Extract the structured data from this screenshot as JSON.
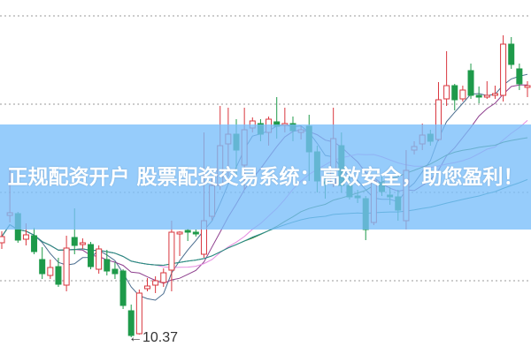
{
  "chart_data": {
    "type": "candlestick",
    "title": "",
    "ylim": [
      10.18,
      14.19
    ],
    "grid": {
      "horizontal": true,
      "style": "dotted",
      "values": [
        14.01,
        13.01,
        12.01,
        11.01
      ]
    },
    "up_color": "#d9363e",
    "down_color": "#1e9a4a",
    "moving_averages": [
      {
        "period": 5,
        "color": "#4a6d8f"
      },
      {
        "period": 10,
        "color": "#8e3f8e"
      },
      {
        "period": 20,
        "color": "#e58be0"
      },
      {
        "period": 30,
        "color": "#2e7d32"
      },
      {
        "period": 60,
        "color": "#2a8c8c"
      }
    ],
    "annotations": [
      {
        "label": "10.37",
        "value": 10.37,
        "candle": 17
      }
    ],
    "candles": [
      [
        11.44,
        11.51,
        11.57,
        11.37
      ],
      [
        11.75,
        11.78,
        12.29,
        11.67
      ],
      [
        11.77,
        11.47,
        11.79,
        11.44
      ],
      [
        11.48,
        11.53,
        11.66,
        11.41
      ],
      [
        11.52,
        11.34,
        11.61,
        11.31
      ],
      [
        11.25,
        11.09,
        11.39,
        11.03
      ],
      [
        11.07,
        11.16,
        11.25,
        11.03
      ],
      [
        11.17,
        10.97,
        11.27,
        10.94
      ],
      [
        10.96,
        11.38,
        11.52,
        10.89
      ],
      [
        11.5,
        11.41,
        11.83,
        11.31
      ],
      [
        11.42,
        11.44,
        11.49,
        11.37
      ],
      [
        11.42,
        11.17,
        11.45,
        11.14
      ],
      [
        11.14,
        11.37,
        11.41,
        11.09
      ],
      [
        11.25,
        11.12,
        11.36,
        11.07
      ],
      [
        11.14,
        11.09,
        11.22,
        11.03
      ],
      [
        11.12,
        10.73,
        11.14,
        10.69
      ],
      [
        10.67,
        10.39,
        10.74,
        10.37
      ],
      [
        10.41,
        10.87,
        10.91,
        10.4
      ],
      [
        10.92,
        10.95,
        11.04,
        10.89
      ],
      [
        10.96,
        11.01,
        11.06,
        10.87
      ],
      [
        10.99,
        11.1,
        11.15,
        10.94
      ],
      [
        11.13,
        11.56,
        11.69,
        10.89
      ],
      [
        11.54,
        11.56,
        11.57,
        11.29
      ],
      [
        11.58,
        11.56,
        11.6,
        11.46
      ],
      [
        11.56,
        11.54,
        11.59,
        11.51
      ],
      [
        11.31,
        11.69,
        12.69,
        11.27
      ],
      [
        11.74,
        12.09,
        12.19,
        11.69
      ],
      [
        12.09,
        12.54,
        12.99,
        12.04
      ],
      [
        12.56,
        12.67,
        12.97,
        12.19
      ],
      [
        12.67,
        12.49,
        12.84,
        12.19
      ],
      [
        12.32,
        12.72,
        12.97,
        12.04
      ],
      [
        12.74,
        12.82,
        12.86,
        12.69
      ],
      [
        12.79,
        12.67,
        12.84,
        12.59
      ],
      [
        12.69,
        12.84,
        12.87,
        12.54
      ],
      [
        12.81,
        12.76,
        13.09,
        12.62
      ],
      [
        12.77,
        12.79,
        12.97,
        12.69
      ],
      [
        12.79,
        12.71,
        12.87,
        12.59
      ],
      [
        12.69,
        12.72,
        12.76,
        12.61
      ],
      [
        12.76,
        12.47,
        12.89,
        12.14
      ],
      [
        12.47,
        12.14,
        12.54,
        12.01
      ],
      [
        12.13,
        12.11,
        12.24,
        11.94
      ],
      [
        12.11,
        12.62,
        12.97,
        12.07
      ],
      [
        12.54,
        12.09,
        12.69,
        12.01
      ],
      [
        12.09,
        11.96,
        12.19,
        11.93
      ],
      [
        11.97,
        11.95,
        12.04,
        11.89
      ],
      [
        11.94,
        11.59,
        11.97,
        11.47
      ],
      [
        11.67,
        12.14,
        12.19,
        11.64
      ],
      [
        12.12,
        12.02,
        12.19,
        11.97
      ],
      [
        11.98,
        11.96,
        12.07,
        11.87
      ],
      [
        11.96,
        11.81,
        12.04,
        11.69
      ],
      [
        11.69,
        12.26,
        12.49,
        11.59
      ],
      [
        12.49,
        12.53,
        12.59,
        12.44
      ],
      [
        12.56,
        12.66,
        12.79,
        12.49
      ],
      [
        12.67,
        12.59,
        12.72,
        12.54
      ],
      [
        12.61,
        13.06,
        13.26,
        12.59
      ],
      [
        13.07,
        13.22,
        13.61,
        12.99
      ],
      [
        13.22,
        13.06,
        13.24,
        12.94
      ],
      [
        13.07,
        13.17,
        13.22,
        13.04
      ],
      [
        13.39,
        13.11,
        13.47,
        13.07
      ],
      [
        13.11,
        13.09,
        13.21,
        13.02
      ],
      [
        13.09,
        13.11,
        13.27,
        13.07
      ],
      [
        13.11,
        13.13,
        13.22,
        13.07
      ],
      [
        13.11,
        13.69,
        13.79,
        13.04
      ],
      [
        13.69,
        13.46,
        13.77,
        13.41
      ],
      [
        13.41,
        13.24,
        13.47,
        13.17
      ],
      [
        13.2,
        13.22,
        13.27,
        13.09
      ]
    ],
    "candle_fields": [
      "open",
      "close",
      "high",
      "low"
    ]
  },
  "banner": {
    "title": "正规配资开户 股票配资交易系统：高效安全，助您盈利！",
    "background_color": "#8ec8fb"
  },
  "low_label": "←10.37"
}
